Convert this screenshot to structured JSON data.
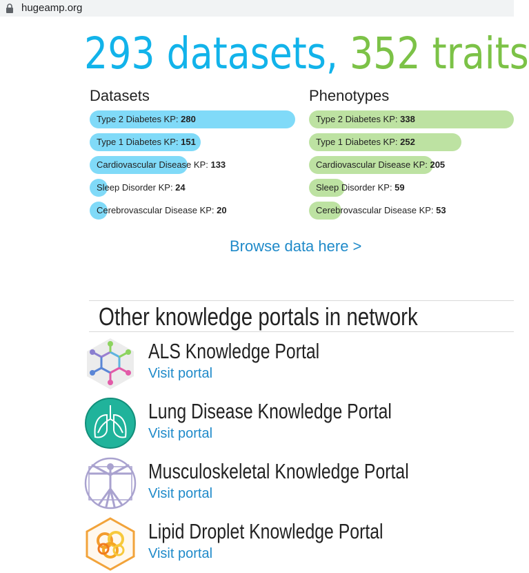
{
  "browser": {
    "url": "hugeamp.org"
  },
  "hero": {
    "datasets_text": "293 datasets,",
    "traits_text": "352 traits"
  },
  "datasets": {
    "heading": "Datasets",
    "max": 280,
    "items": [
      {
        "label": "Type 2 Diabetes KP: ",
        "value": "280",
        "num": 280
      },
      {
        "label": "Type 1 Diabetes KP: ",
        "value": "151",
        "num": 151
      },
      {
        "label": "Cardiovascular Disease KP: ",
        "value": "133",
        "num": 133
      },
      {
        "label": "Sleep Disorder KP: ",
        "value": "24",
        "num": 24
      },
      {
        "label": "Cerebrovascular Disease KP: ",
        "value": "20",
        "num": 20
      }
    ]
  },
  "phenotypes": {
    "heading": "Phenotypes",
    "max": 338,
    "items": [
      {
        "label": "Type 2 Diabetes KP: ",
        "value": "338",
        "num": 338
      },
      {
        "label": "Type 1 Diabetes KP: ",
        "value": "252",
        "num": 252
      },
      {
        "label": "Cardiovascular Disease KP: ",
        "value": "205",
        "num": 205
      },
      {
        "label": "Sleep Disorder KP: ",
        "value": "59",
        "num": 59
      },
      {
        "label": "Cerebrovascular Disease KP: ",
        "value": "53",
        "num": 53
      }
    ]
  },
  "browse": {
    "label": "Browse data here >"
  },
  "network": {
    "title": "Other knowledge portals in network",
    "portals": [
      {
        "name": "ALS Knowledge Portal",
        "link": "Visit portal",
        "icon": "als-molecule-icon"
      },
      {
        "name": "Lung Disease Knowledge Portal",
        "link": "Visit portal",
        "icon": "lung-icon"
      },
      {
        "name": "Musculoskeletal Knowledge Portal",
        "link": "Visit portal",
        "icon": "vitruvian-man-icon"
      },
      {
        "name": "Lipid Droplet Knowledge Portal",
        "link": "Visit portal",
        "icon": "lipid-droplet-icon"
      }
    ]
  },
  "colors": {
    "blue": "#12b3ea",
    "green": "#7cc247",
    "bar_blue": "#80daf8",
    "bar_green": "#bde2a2",
    "link": "#1f8ac9"
  }
}
